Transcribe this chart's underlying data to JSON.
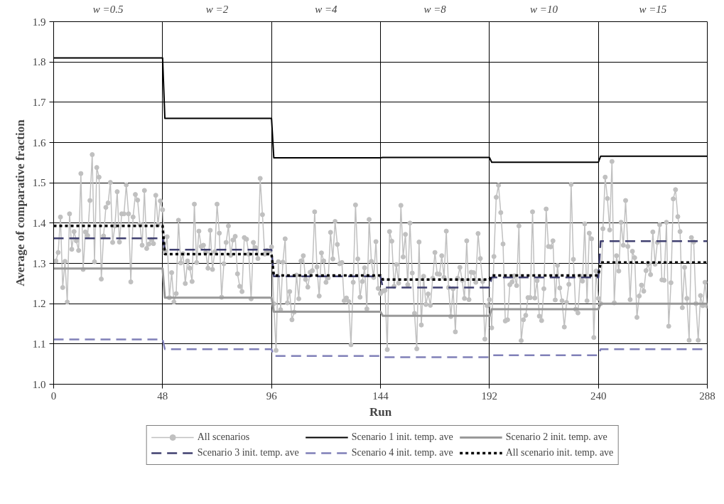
{
  "chart_data": {
    "type": "line",
    "xlabel": "Run",
    "ylabel": "Average of comparative fraction",
    "xlim": [
      0,
      288
    ],
    "ylim": [
      1.0,
      1.9
    ],
    "xticks": [
      0,
      48,
      96,
      144,
      192,
      240,
      288
    ],
    "yticks": [
      {
        "value": 1.0,
        "label": "1.0"
      },
      {
        "value": 1.1,
        "label": "1.1"
      },
      {
        "value": 1.2,
        "label": "1.2"
      },
      {
        "value": 1.3,
        "label": "1.3"
      },
      {
        "value": 1.4,
        "label": "1.4"
      },
      {
        "value": 1.5,
        "label": "1.5"
      },
      {
        "value": 1.6,
        "label": "1.6"
      },
      {
        "value": 1.7,
        "label": "1.7"
      },
      {
        "value": 1.8,
        "label": "1.8"
      },
      {
        "value": 1.9,
        "label": "1.9"
      }
    ],
    "grid": true,
    "legend": "bottom",
    "annotations": [
      "w =0.5",
      "w =2",
      "w =4",
      "w =8",
      "w =10",
      "w =15"
    ],
    "series": [
      {
        "name": "All scenarios",
        "color": "#c0c0c0",
        "marker": "circle",
        "line_style": "solid",
        "x": [
          1,
          2,
          3,
          4,
          5,
          6,
          7,
          8,
          9,
          10,
          11,
          12,
          13,
          14,
          15,
          16,
          17,
          18,
          19,
          20,
          21,
          22,
          23,
          24,
          25,
          26,
          27,
          28,
          29,
          30,
          31,
          32,
          33,
          34,
          35,
          36,
          37,
          38,
          39,
          40,
          41,
          42,
          43,
          44,
          45,
          46,
          47,
          48,
          49,
          50,
          51,
          52,
          53,
          54,
          55,
          56,
          57,
          58,
          59,
          60,
          61,
          62,
          63,
          64,
          65,
          66,
          67,
          68,
          69,
          70,
          71,
          72,
          73,
          74,
          75,
          76,
          77,
          78,
          79,
          80,
          81,
          82,
          83,
          84,
          85,
          86,
          87,
          88,
          89,
          90,
          91,
          92,
          93,
          94,
          95,
          96,
          97,
          98,
          99,
          100,
          101,
          102,
          103,
          104,
          105,
          106,
          107,
          108,
          109,
          110,
          111,
          112,
          113,
          114,
          115,
          116,
          117,
          118,
          119,
          120,
          121,
          122,
          123,
          124,
          125,
          126,
          127,
          128,
          129,
          130,
          131,
          132,
          133,
          134,
          135,
          136,
          137,
          138,
          139,
          140,
          141,
          142,
          143,
          144,
          145,
          146,
          147,
          148,
          149,
          150,
          151,
          152,
          153,
          154,
          155,
          156,
          157,
          158,
          159,
          160,
          161,
          162,
          163,
          164,
          165,
          166,
          167,
          168,
          169,
          170,
          171,
          172,
          173,
          174,
          175,
          176,
          177,
          178,
          179,
          180,
          181,
          182,
          183,
          184,
          185,
          186,
          187,
          188,
          189,
          190,
          191,
          192,
          193,
          194,
          195,
          196,
          197,
          198,
          199,
          200,
          201,
          202,
          203,
          204,
          205,
          206,
          207,
          208,
          209,
          210,
          211,
          212,
          213,
          214,
          215,
          216,
          217,
          218,
          219,
          220,
          221,
          222,
          223,
          224,
          225,
          226,
          227,
          228,
          229,
          230,
          231,
          232,
          233,
          234,
          235,
          236,
          237,
          238,
          239,
          240,
          241,
          242,
          243,
          244,
          245,
          246,
          247,
          248,
          249,
          250,
          251,
          252,
          253,
          254,
          255,
          256,
          257,
          258,
          259,
          260,
          261,
          262,
          263,
          264,
          265,
          266,
          267,
          268,
          269,
          270,
          271,
          272,
          273,
          274,
          275,
          276,
          277,
          278,
          279,
          280,
          281,
          282,
          283,
          284,
          285,
          286,
          287,
          288
        ],
        "values": [
          1.306,
          1.327,
          1.415,
          1.24,
          1.305,
          1.204,
          1.423,
          1.335,
          1.379,
          1.356,
          1.332,
          1.523,
          1.285,
          1.378,
          1.369,
          1.456,
          1.57,
          1.304,
          1.538,
          1.514,
          1.261,
          1.368,
          1.439,
          1.45,
          1.501,
          1.352,
          1.393,
          1.478,
          1.353,
          1.423,
          1.423,
          1.495,
          1.423,
          1.254,
          1.415,
          1.471,
          1.457,
          1.397,
          1.345,
          1.481,
          1.337,
          1.348,
          1.359,
          1.349,
          1.469,
          1.396,
          1.455,
          1.433,
          1.331,
          1.366,
          1.215,
          1.277,
          1.204,
          1.225,
          1.407,
          1.301,
          1.324,
          1.25,
          1.306,
          1.288,
          1.255,
          1.447,
          1.302,
          1.38,
          1.342,
          1.345,
          1.327,
          1.288,
          1.382,
          1.285,
          1.329,
          1.447,
          1.375,
          1.216,
          1.299,
          1.352,
          1.393,
          1.32,
          1.358,
          1.367,
          1.274,
          1.243,
          1.23,
          1.364,
          1.36,
          1.323,
          1.212,
          1.352,
          1.339,
          1.312,
          1.511,
          1.421,
          1.323,
          1.332,
          1.33,
          1.341,
          1.2,
          1.084,
          1.304,
          1.185,
          1.303,
          1.361,
          1.202,
          1.23,
          1.16,
          1.179,
          1.271,
          1.212,
          1.306,
          1.319,
          1.26,
          1.241,
          1.278,
          1.282,
          1.428,
          1.291,
          1.219,
          1.326,
          1.306,
          1.253,
          1.264,
          1.377,
          1.311,
          1.404,
          1.347,
          1.299,
          1.302,
          1.207,
          1.214,
          1.205,
          1.098,
          1.253,
          1.445,
          1.311,
          1.216,
          1.255,
          1.289,
          1.187,
          1.409,
          1.305,
          1.265,
          1.354,
          1.238,
          1.225,
          1.231,
          1.233,
          1.086,
          1.379,
          1.355,
          1.243,
          1.297,
          1.251,
          1.444,
          1.316,
          1.372,
          1.247,
          1.4,
          1.276,
          1.176,
          1.088,
          1.353,
          1.147,
          1.268,
          1.198,
          1.224,
          1.196,
          1.263,
          1.327,
          1.274,
          1.273,
          1.319,
          1.265,
          1.38,
          1.24,
          1.168,
          1.237,
          1.13,
          1.263,
          1.29,
          1.258,
          1.213,
          1.356,
          1.21,
          1.278,
          1.277,
          1.253,
          1.374,
          1.312,
          1.255,
          1.112,
          1.195,
          1.21,
          1.14,
          1.317,
          1.464,
          1.494,
          1.426,
          1.348,
          1.157,
          1.16,
          1.247,
          1.254,
          1.269,
          1.245,
          1.393,
          1.108,
          1.16,
          1.171,
          1.215,
          1.215,
          1.428,
          1.214,
          1.257,
          1.169,
          1.158,
          1.237,
          1.435,
          1.342,
          1.341,
          1.356,
          1.209,
          1.295,
          1.239,
          1.207,
          1.142,
          1.203,
          1.248,
          1.496,
          1.31,
          1.186,
          1.177,
          1.268,
          1.256,
          1.398,
          1.207,
          1.375,
          1.361,
          1.116,
          1.281,
          1.213,
          1.2,
          1.386,
          1.514,
          1.461,
          1.383,
          1.553,
          1.202,
          1.319,
          1.281,
          1.402,
          1.345,
          1.456,
          1.342,
          1.21,
          1.33,
          1.314,
          1.166,
          1.219,
          1.246,
          1.231,
          1.282,
          1.299,
          1.272,
          1.378,
          1.298,
          1.352,
          1.396,
          1.259,
          1.258,
          1.402,
          1.144,
          1.252,
          1.46,
          1.483,
          1.416,
          1.379,
          1.19,
          1.29,
          1.213,
          1.109,
          1.364,
          1.353,
          1.2,
          1.109,
          1.22,
          1.195,
          1.253,
          1.194
        ]
      },
      {
        "name": "Scenario 1 init. temp. ave",
        "color": "#000000",
        "marker": "none",
        "line_style": "solid",
        "x": [
          0,
          48,
          49,
          96,
          97,
          144,
          145,
          192,
          193,
          240,
          241,
          288
        ],
        "values": [
          1.81,
          1.81,
          1.66,
          1.66,
          1.562,
          1.562,
          1.563,
          1.563,
          1.551,
          1.551,
          1.566,
          1.566
        ]
      },
      {
        "name": "Scenario 2 init. temp. ave",
        "color": "#999999",
        "marker": "none",
        "line_style": "solid",
        "x": [
          0,
          48,
          49,
          96,
          97,
          144,
          145,
          192,
          193,
          240,
          241,
          288
        ],
        "values": [
          1.287,
          1.287,
          1.215,
          1.215,
          1.18,
          1.18,
          1.17,
          1.17,
          1.186,
          1.186,
          1.2,
          1.2
        ]
      },
      {
        "name": "Scenario 3 init. temp. ave",
        "color": "#404070",
        "marker": "none",
        "line_style": "dashed",
        "x": [
          0,
          48,
          49,
          96,
          97,
          144,
          145,
          192,
          193,
          240,
          241,
          288
        ],
        "values": [
          1.362,
          1.362,
          1.334,
          1.334,
          1.268,
          1.268,
          1.24,
          1.24,
          1.265,
          1.265,
          1.355,
          1.355
        ]
      },
      {
        "name": "Scenario 4 init. temp. ave",
        "color": "#8080b8",
        "marker": "none",
        "line_style": "dashed",
        "x": [
          0,
          48,
          49,
          96,
          97,
          144,
          145,
          192,
          193,
          240,
          241,
          288
        ],
        "values": [
          1.111,
          1.111,
          1.087,
          1.087,
          1.07,
          1.07,
          1.067,
          1.067,
          1.072,
          1.072,
          1.087,
          1.087
        ]
      },
      {
        "name": "All scenario init. temp. ave",
        "color": "#000000",
        "marker": "none",
        "line_style": "dotted",
        "x": [
          0,
          48,
          49,
          96,
          97,
          144,
          145,
          192,
          193,
          240,
          241,
          288
        ],
        "values": [
          1.393,
          1.393,
          1.323,
          1.323,
          1.27,
          1.27,
          1.26,
          1.26,
          1.27,
          1.27,
          1.302,
          1.302
        ]
      }
    ]
  }
}
